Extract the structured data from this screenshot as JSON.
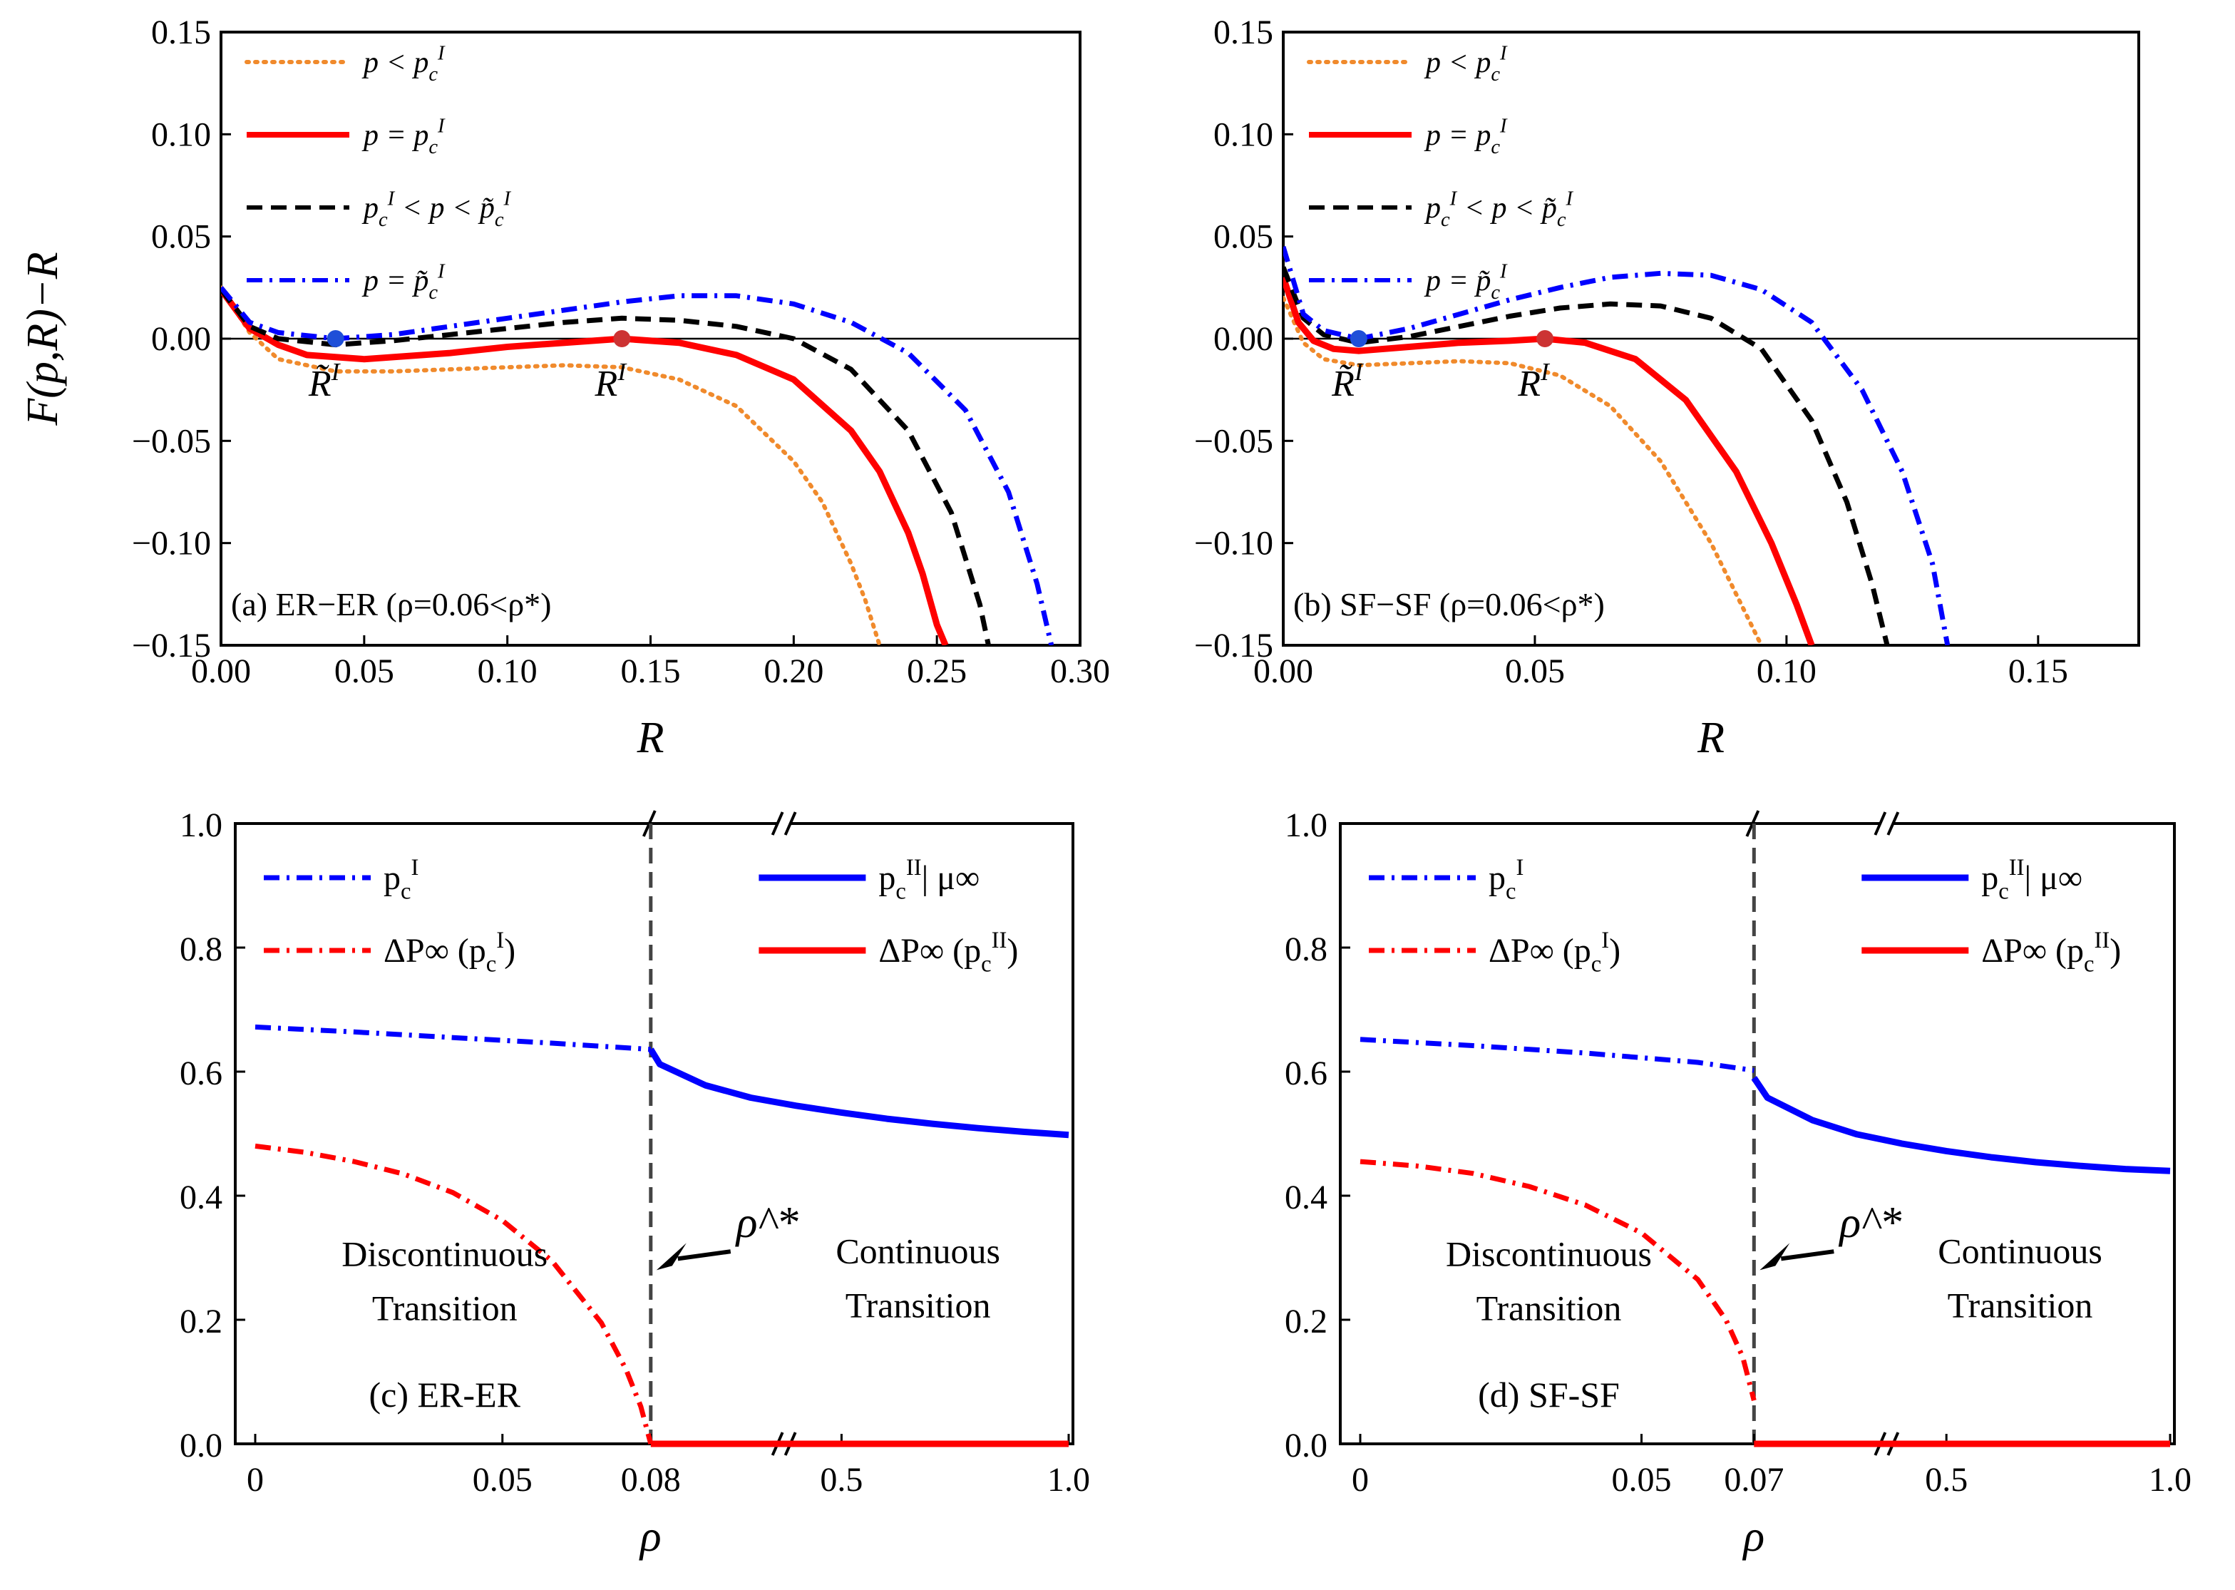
{
  "chart_data": [
    {
      "type": "line",
      "panel_label": "(a) ER−ER  (ρ=0.06<ρ*)",
      "xlabel": "R",
      "ylabel": "F(p,R)−R",
      "xlim": [
        0,
        0.3
      ],
      "ylim": [
        -0.15,
        0.15
      ],
      "xticks": [
        "0.00",
        "0.05",
        "0.10",
        "0.15",
        "0.20",
        "0.25",
        "0.30"
      ],
      "yticks": [
        "−0.15",
        "−0.10",
        "−0.05",
        "0.00",
        "0.05",
        "0.10",
        "0.15"
      ],
      "legend": [
        "p < p_c^I",
        "p = p_c^I",
        "p_c^I < p < p̃_c^I",
        "p = p̃_c^I"
      ],
      "series": [
        {
          "name": "p < p_c^I",
          "style": "dotted",
          "color": "#f08a2c",
          "x": [
            0.0,
            0.01,
            0.02,
            0.04,
            0.06,
            0.08,
            0.1,
            0.12,
            0.14,
            0.16,
            0.18,
            0.2,
            0.21,
            0.22,
            0.225,
            0.23
          ],
          "y": [
            0.025,
            0.003,
            -0.01,
            -0.016,
            -0.016,
            -0.015,
            -0.014,
            -0.013,
            -0.014,
            -0.02,
            -0.033,
            -0.06,
            -0.08,
            -0.11,
            -0.128,
            -0.15
          ]
        },
        {
          "name": "p = p_c^I",
          "style": "solid",
          "color": "#ff0000",
          "x": [
            0.0,
            0.01,
            0.02,
            0.03,
            0.05,
            0.08,
            0.1,
            0.12,
            0.14,
            0.16,
            0.18,
            0.2,
            0.22,
            0.23,
            0.24,
            0.245,
            0.25,
            0.253
          ],
          "y": [
            0.024,
            0.005,
            -0.003,
            -0.008,
            -0.01,
            -0.007,
            -0.004,
            -0.002,
            0.0,
            -0.002,
            -0.008,
            -0.02,
            -0.045,
            -0.065,
            -0.095,
            -0.115,
            -0.14,
            -0.15
          ]
        },
        {
          "name": "p_c^I < p < p̃_c^I",
          "style": "dashed",
          "color": "#000000",
          "x": [
            0.0,
            0.01,
            0.02,
            0.04,
            0.06,
            0.08,
            0.1,
            0.12,
            0.14,
            0.16,
            0.18,
            0.2,
            0.22,
            0.24,
            0.255,
            0.265,
            0.268
          ],
          "y": [
            0.024,
            0.006,
            0.0,
            -0.003,
            -0.001,
            0.002,
            0.005,
            0.008,
            0.01,
            0.009,
            0.006,
            0.0,
            -0.015,
            -0.045,
            -0.085,
            -0.13,
            -0.15
          ]
        },
        {
          "name": "p = p̃_c^I",
          "style": "dashdot",
          "color": "#0000ff",
          "x": [
            0.0,
            0.01,
            0.02,
            0.04,
            0.06,
            0.08,
            0.1,
            0.12,
            0.14,
            0.16,
            0.18,
            0.2,
            0.22,
            0.24,
            0.26,
            0.275,
            0.285,
            0.29
          ],
          "y": [
            0.025,
            0.008,
            0.003,
            0.0,
            0.002,
            0.006,
            0.01,
            0.014,
            0.018,
            0.021,
            0.021,
            0.017,
            0.008,
            -0.007,
            -0.035,
            -0.075,
            -0.12,
            -0.15
          ]
        }
      ],
      "points": [
        {
          "label": "R̃^I",
          "x": 0.04,
          "y": 0.0,
          "color": "#1f4fd8"
        },
        {
          "label": "R^I",
          "x": 0.14,
          "y": 0.0,
          "color": "#cc3333"
        }
      ]
    },
    {
      "type": "line",
      "panel_label": "(b) SF−SF  (ρ=0.06<ρ*)",
      "xlabel": "R",
      "ylabel": "",
      "xlim": [
        0,
        0.17
      ],
      "ylim": [
        -0.15,
        0.15
      ],
      "xticks": [
        "0.00",
        "0.05",
        "0.10",
        "0.15"
      ],
      "yticks": [
        "−0.15",
        "−0.10",
        "−0.05",
        "0.00",
        "0.05",
        "0.10",
        "0.15"
      ],
      "legend": [
        "p < p_c^I",
        "p = p_c^I",
        "p_c^I < p < p̃_c^I",
        "p = p̃_c^I"
      ],
      "series": [
        {
          "name": "p < p_c^I",
          "style": "dotted",
          "color": "#f08a2c",
          "x": [
            0.0,
            0.004,
            0.008,
            0.015,
            0.025,
            0.035,
            0.045,
            0.055,
            0.065,
            0.075,
            0.085,
            0.09,
            0.093,
            0.095
          ],
          "y": [
            0.02,
            -0.002,
            -0.01,
            -0.013,
            -0.012,
            -0.011,
            -0.012,
            -0.018,
            -0.033,
            -0.06,
            -0.1,
            -0.125,
            -0.14,
            -0.15
          ]
        },
        {
          "name": "p = p_c^I",
          "style": "solid",
          "color": "#ff0000",
          "x": [
            0.0,
            0.003,
            0.006,
            0.01,
            0.015,
            0.025,
            0.035,
            0.045,
            0.052,
            0.06,
            0.07,
            0.08,
            0.09,
            0.097,
            0.102,
            0.105
          ],
          "y": [
            0.03,
            0.008,
            -0.001,
            -0.005,
            -0.006,
            -0.004,
            -0.002,
            -0.001,
            0.0,
            -0.002,
            -0.01,
            -0.03,
            -0.065,
            -0.1,
            -0.13,
            -0.15
          ]
        },
        {
          "name": "p_c^I < p < p̃_c^I",
          "style": "dashed",
          "color": "#000000",
          "x": [
            0.0,
            0.004,
            0.008,
            0.015,
            0.025,
            0.035,
            0.045,
            0.055,
            0.065,
            0.075,
            0.085,
            0.095,
            0.105,
            0.112,
            0.117,
            0.12
          ],
          "y": [
            0.035,
            0.01,
            0.002,
            -0.002,
            0.001,
            0.006,
            0.011,
            0.015,
            0.017,
            0.016,
            0.01,
            -0.005,
            -0.04,
            -0.08,
            -0.12,
            -0.15
          ]
        },
        {
          "name": "p = p̃_c^I",
          "style": "dashdot",
          "color": "#0000ff",
          "x": [
            0.0,
            0.004,
            0.008,
            0.015,
            0.025,
            0.035,
            0.045,
            0.055,
            0.065,
            0.075,
            0.085,
            0.095,
            0.105,
            0.115,
            0.123,
            0.129,
            0.132
          ],
          "y": [
            0.045,
            0.012,
            0.004,
            0.0,
            0.005,
            0.012,
            0.019,
            0.025,
            0.03,
            0.032,
            0.031,
            0.024,
            0.008,
            -0.025,
            -0.065,
            -0.11,
            -0.15
          ]
        }
      ],
      "points": [
        {
          "label": "R̃^I",
          "x": 0.015,
          "y": 0.0,
          "color": "#1f4fd8"
        },
        {
          "label": "R^I",
          "x": 0.052,
          "y": 0.0,
          "color": "#cc3333"
        }
      ]
    },
    {
      "type": "line",
      "panel_label": "(c) ER-ER",
      "xlabel": "ρ",
      "ylabel": "",
      "ylim": [
        0,
        1.0
      ],
      "xticks": [
        "0",
        "0.05",
        "0.08",
        "0.5",
        "1.0"
      ],
      "yticks": [
        "0.0",
        "0.2",
        "0.4",
        "0.6",
        "0.8",
        "1.0"
      ],
      "broken_x_axis": true,
      "rho_star": 0.08,
      "legend": [
        "p_c^I",
        "ΔP∞ (p_c^I)",
        "p_c^II| μ∞",
        "ΔP∞ (p_c^II)"
      ],
      "annotation": "ρ*",
      "regions": [
        [
          "Discontinuous",
          "Transition"
        ],
        [
          "Continuous",
          "Transition"
        ]
      ],
      "series": [
        {
          "name": "p_c^I",
          "style": "dashdot",
          "color": "#0000ff",
          "segment": "left",
          "x": [
            0,
            0.02,
            0.04,
            0.06,
            0.08
          ],
          "y": [
            0.672,
            0.664,
            0.655,
            0.646,
            0.636
          ]
        },
        {
          "name": "ΔP∞ (p_c^I)",
          "style": "dashdot",
          "color": "#ff0000",
          "segment": "left",
          "x": [
            0,
            0.01,
            0.02,
            0.03,
            0.04,
            0.05,
            0.06,
            0.07,
            0.075,
            0.078,
            0.08
          ],
          "y": [
            0.48,
            0.47,
            0.455,
            0.435,
            0.405,
            0.36,
            0.295,
            0.195,
            0.12,
            0.06,
            0.0
          ]
        },
        {
          "name": "p_c^II| μ∞",
          "style": "solid",
          "color": "#0000ff",
          "segment": "right",
          "x": [
            0.08,
            0.1,
            0.2,
            0.3,
            0.4,
            0.5,
            0.6,
            0.7,
            0.8,
            0.9,
            1.0
          ],
          "y": [
            0.636,
            0.612,
            0.578,
            0.558,
            0.545,
            0.534,
            0.524,
            0.516,
            0.509,
            0.503,
            0.498
          ]
        },
        {
          "name": "ΔP∞ (p_c^II)",
          "style": "solid",
          "color": "#ff0000",
          "segment": "right",
          "x": [
            0.08,
            1.0
          ],
          "y": [
            0.0,
            0.0
          ]
        }
      ]
    },
    {
      "type": "line",
      "panel_label": "(d) SF-SF",
      "xlabel": "ρ",
      "ylabel": "",
      "ylim": [
        0,
        1.0
      ],
      "xticks": [
        "0",
        "0.05",
        "0.07",
        "0.5",
        "1.0"
      ],
      "yticks": [
        "0.0",
        "0.2",
        "0.4",
        "0.6",
        "0.8",
        "1.0"
      ],
      "broken_x_axis": true,
      "rho_star": 0.07,
      "legend": [
        "p_c^I",
        "ΔP∞ (p_c^I)",
        "p_c^II| μ∞",
        "ΔP∞ (p_c^II)"
      ],
      "annotation": "ρ*",
      "regions": [
        [
          "Discontinuous",
          "Transition"
        ],
        [
          "Continuous",
          "Transition"
        ]
      ],
      "series": [
        {
          "name": "p_c^I",
          "style": "dashdot",
          "color": "#0000ff",
          "segment": "left",
          "x": [
            0,
            0.02,
            0.04,
            0.06,
            0.07
          ],
          "y": [
            0.652,
            0.642,
            0.63,
            0.615,
            0.602
          ]
        },
        {
          "name": "ΔP∞ (p_c^I)",
          "style": "dashdot",
          "color": "#ff0000",
          "segment": "left",
          "x": [
            0,
            0.01,
            0.02,
            0.03,
            0.04,
            0.05,
            0.06,
            0.065,
            0.068,
            0.07
          ],
          "y": [
            0.455,
            0.448,
            0.436,
            0.415,
            0.385,
            0.34,
            0.265,
            0.2,
            0.14,
            0.07
          ]
        },
        {
          "name": "p_c^II| μ∞",
          "style": "solid",
          "color": "#0000ff",
          "segment": "right",
          "x": [
            0.07,
            0.1,
            0.2,
            0.3,
            0.4,
            0.5,
            0.6,
            0.7,
            0.8,
            0.9,
            1.0
          ],
          "y": [
            0.59,
            0.558,
            0.522,
            0.499,
            0.484,
            0.472,
            0.462,
            0.454,
            0.448,
            0.443,
            0.44
          ]
        },
        {
          "name": "ΔP∞ (p_c^II)",
          "style": "solid",
          "color": "#ff0000",
          "segment": "right",
          "x": [
            0.07,
            1.0
          ],
          "y": [
            0.0,
            0.0
          ]
        }
      ]
    }
  ]
}
